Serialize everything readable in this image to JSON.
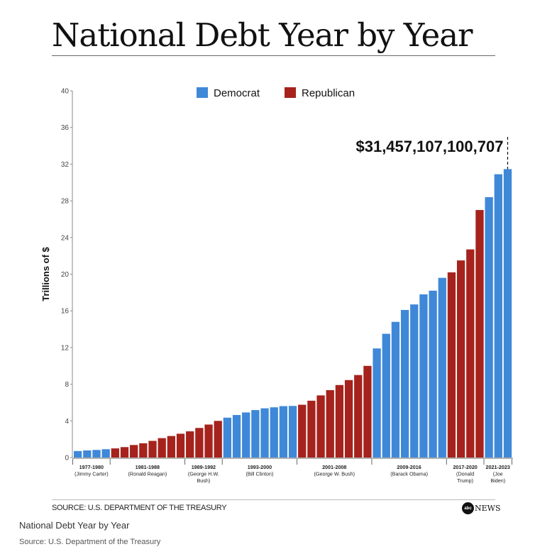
{
  "header": {
    "title": "National Debt Year by Year"
  },
  "footer": {
    "source": "SOURCE: U.S. DEPARTMENT OF THE TREASURY",
    "logo_mark": "abc",
    "logo_word": "NEWS"
  },
  "caption": {
    "title": "National Debt Year by Year",
    "source": "Source: U.S. Department of the Treasury"
  },
  "colors": {
    "Democrat": "#3f88d8",
    "Republican": "#a5231c"
  },
  "chart_data": {
    "type": "bar",
    "title": "National Debt Year by Year",
    "xlabel": "",
    "ylabel": "Trillions of $",
    "ylim": [
      0,
      40
    ],
    "yticks": [
      0,
      4,
      8,
      12,
      16,
      20,
      24,
      28,
      32,
      36,
      40
    ],
    "grid": false,
    "legend": {
      "placement": "top-center",
      "entries": [
        "Democrat",
        "Republican"
      ]
    },
    "annotation": {
      "text": "$31,457,107,100,707",
      "target": "last-bar"
    },
    "groups": [
      {
        "label_lines": [
          "1977-1980",
          "(Jimmy Carter)"
        ],
        "party": "Democrat",
        "values": [
          0.71,
          0.78,
          0.83,
          0.91
        ]
      },
      {
        "label_lines": [
          "1981-1988",
          "(Ronald Reagan)"
        ],
        "party": "Republican",
        "values": [
          1.0,
          1.14,
          1.37,
          1.56,
          1.82,
          2.12,
          2.35,
          2.6
        ]
      },
      {
        "label_lines": [
          "1989-1992",
          "(George H.W.",
          "Bush)"
        ],
        "party": "Republican",
        "values": [
          2.86,
          3.23,
          3.6,
          4.0
        ]
      },
      {
        "label_lines": [
          "1993-2000",
          "(Bill Clinton)"
        ],
        "party": "Democrat",
        "values": [
          4.35,
          4.64,
          4.92,
          5.18,
          5.37,
          5.48,
          5.61,
          5.63
        ]
      },
      {
        "label_lines": [
          "2001-2008",
          "(George W. Bush)"
        ],
        "party": "Republican",
        "values": [
          5.76,
          6.2,
          6.78,
          7.35,
          7.91,
          8.45,
          9.0,
          10.0
        ]
      },
      {
        "label_lines": [
          "2009-2016",
          "(Barack Obama)"
        ],
        "party": "Democrat",
        "values": [
          11.9,
          13.5,
          14.8,
          16.1,
          16.7,
          17.8,
          18.2,
          19.6
        ]
      },
      {
        "label_lines": [
          "2017-2020",
          "(Donald",
          "Trump)"
        ],
        "party": "Republican",
        "values": [
          20.2,
          21.5,
          22.7,
          27.0
        ]
      },
      {
        "label_lines": [
          "2021-2023",
          "(Joe",
          "Biden)"
        ],
        "party": "Democrat",
        "values": [
          28.4,
          30.9,
          31.46
        ]
      }
    ]
  }
}
